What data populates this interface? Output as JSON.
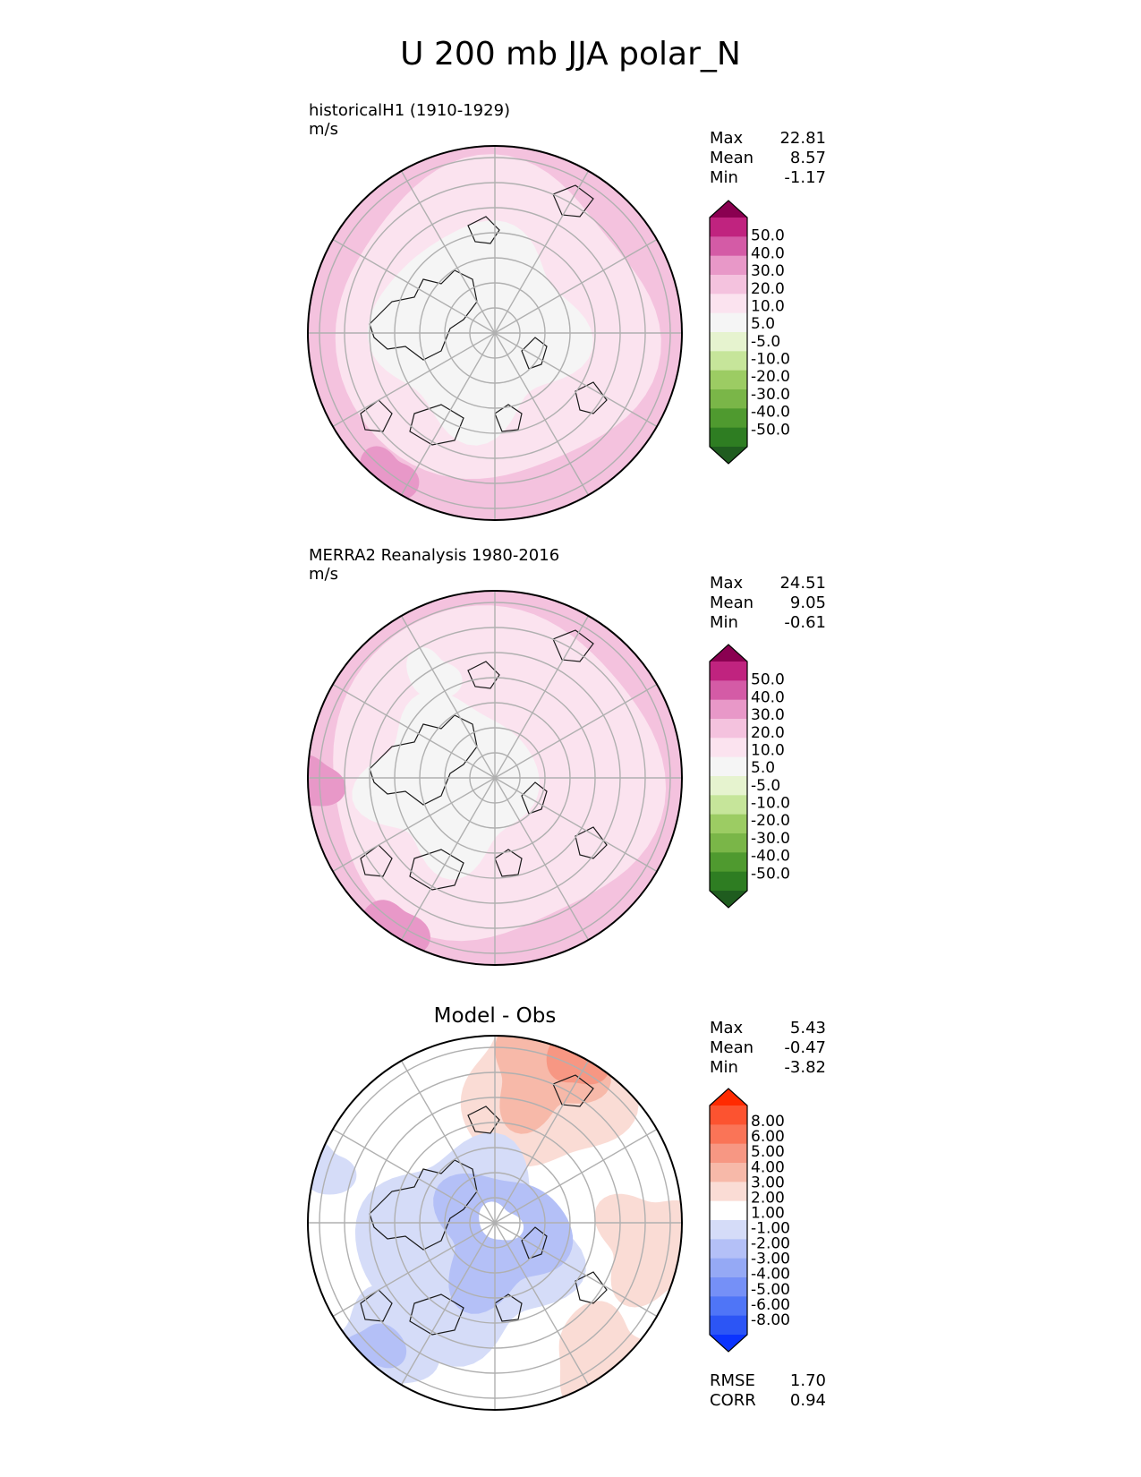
{
  "title": "U 200 mb JJA polar_N",
  "colors": {
    "test_levels": [
      "#1f5c1f",
      "#2e7d22",
      "#4f9a2f",
      "#7ab648",
      "#9ccc63",
      "#c6e59a",
      "#e6f3cf",
      "#f5f5f5",
      "#fbe3ef",
      "#f4c2de",
      "#e898c8",
      "#d45ba6",
      "#c0237f",
      "#8a0051"
    ],
    "diff_levels": [
      "#0b33ff",
      "#2c55f5",
      "#4f75f7",
      "#7590f7",
      "#95a9f5",
      "#b4c0f7",
      "#d5dcf8",
      "#ffffff",
      "#fadcd5",
      "#f7b9a9",
      "#f79783",
      "#fa7457",
      "#fc5330",
      "#ff2a00"
    ],
    "coastline": "#1a1a1a",
    "grid": "#b0b0b0"
  },
  "panels": [
    {
      "label": "historicalH1 (1910-1929)",
      "units": "m/s",
      "stats": [
        {
          "name": "Max",
          "value": "22.81"
        },
        {
          "name": "Mean",
          "value": "8.57"
        },
        {
          "name": "Min",
          "value": "-1.17"
        }
      ]
    },
    {
      "label": "MERRA2 Reanalysis 1980-2016",
      "units": "m/s",
      "stats": [
        {
          "name": "Max",
          "value": "24.51"
        },
        {
          "name": "Mean",
          "value": "9.05"
        },
        {
          "name": "Min",
          "value": "-0.61"
        }
      ]
    },
    {
      "label": "Model - Obs",
      "stats": [
        {
          "name": "Max",
          "value": "5.43"
        },
        {
          "name": "Mean",
          "value": "-0.47"
        },
        {
          "name": "Min",
          "value": "-3.82"
        }
      ],
      "metrics": [
        {
          "name": "RMSE",
          "value": "1.70"
        },
        {
          "name": "CORR",
          "value": "0.94"
        }
      ]
    }
  ],
  "colorbars": {
    "test_ticks": [
      "-50.0",
      "-40.0",
      "-30.0",
      "-20.0",
      "-10.0",
      "-5.0",
      "5.0",
      "10.0",
      "20.0",
      "30.0",
      "40.0",
      "50.0"
    ],
    "diff_ticks": [
      "-8.00",
      "-6.00",
      "-5.00",
      "-4.00",
      "-3.00",
      "-2.00",
      "-1.00",
      "1.00",
      "2.00",
      "3.00",
      "4.00",
      "5.00",
      "6.00",
      "8.00"
    ]
  },
  "chart_data": [
    {
      "type": "heatmap",
      "projection": "north polar stereographic",
      "title": "historicalH1 (1910-1929)",
      "units": "m/s",
      "contour_levels": [
        -50,
        -40,
        -30,
        -20,
        -10,
        -5,
        5,
        10,
        20,
        30,
        40,
        50
      ],
      "colorbar_extend": "both",
      "max": 22.81,
      "mean": 8.57,
      "min": -1.17
    },
    {
      "type": "heatmap",
      "projection": "north polar stereographic",
      "title": "MERRA2 Reanalysis 1980-2016",
      "units": "m/s",
      "contour_levels": [
        -50,
        -40,
        -30,
        -20,
        -10,
        -5,
        5,
        10,
        20,
        30,
        40,
        50
      ],
      "colorbar_extend": "both",
      "max": 24.51,
      "mean": 9.05,
      "min": -0.61
    },
    {
      "type": "heatmap",
      "projection": "north polar stereographic",
      "title": "Model - Obs",
      "contour_levels": [
        -8,
        -6,
        -5,
        -4,
        -3,
        -2,
        -1,
        1,
        2,
        3,
        4,
        5,
        6,
        8
      ],
      "colorbar_extend": "both",
      "max": 5.43,
      "mean": -0.47,
      "min": -3.82,
      "rmse": 1.7,
      "corr": 0.94
    }
  ]
}
